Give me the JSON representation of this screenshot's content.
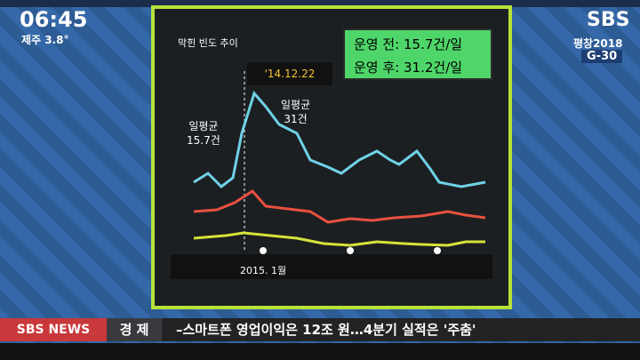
{
  "clock": {
    "time": "06:45",
    "weather": "제주 3.8°"
  },
  "logo": {
    "channel": "SBS",
    "event": "평창2018",
    "countdown": "G-30"
  },
  "panel": {
    "title": "막힌 빈도 추이",
    "legend": [
      "운영 전: 15.7건/일",
      "운영 후: 31.2건/일"
    ],
    "date_tag": "'14.12.22",
    "annotations": [
      [
        "일평균",
        "15.7건"
      ],
      [
        "일평균",
        "31건"
      ]
    ],
    "x_label": "2015. 1월"
  },
  "ticker": {
    "brand": "SBS NEWS",
    "section": "경 제",
    "headline": "–스마트폰 영업이익은 12조 원…4분기 실적은 '주춤'"
  }
}
